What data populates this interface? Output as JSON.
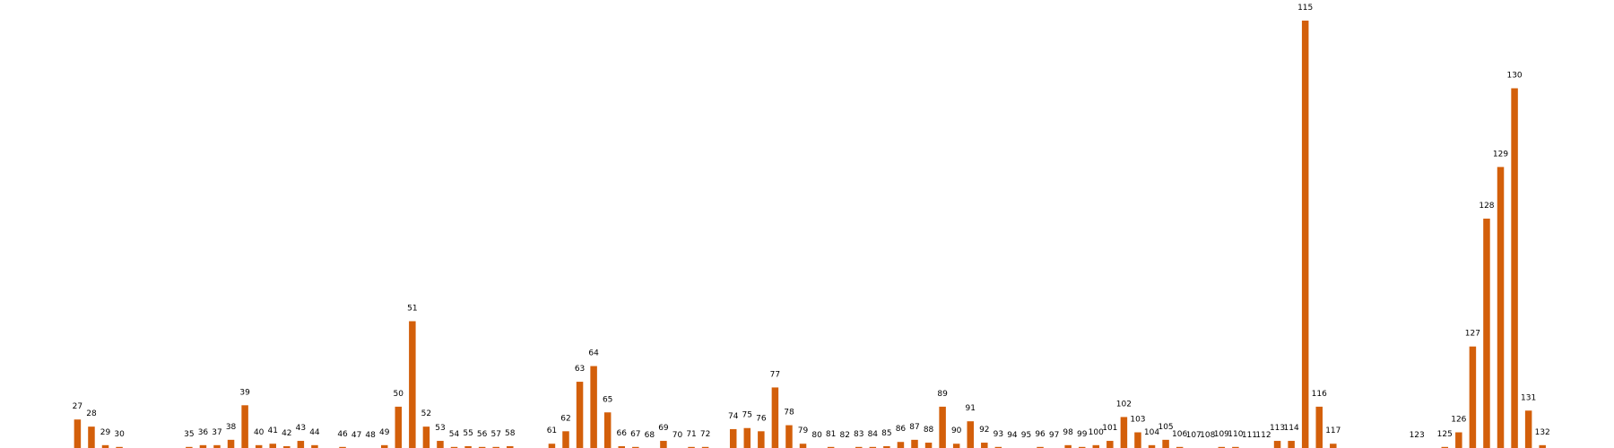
{
  "chart_data": {
    "type": "bar",
    "title": "",
    "xlabel": "",
    "ylabel": "",
    "grid": false,
    "bar_color": "#d35f0a",
    "ylim": [
      0,
      120
    ],
    "bars": [
      {
        "label": "27",
        "value": 8
      },
      {
        "label": "28",
        "value": 6
      },
      {
        "label": "29",
        "value": 0.8
      },
      {
        "label": "30",
        "value": 0.3
      },
      {
        "label": "35",
        "value": 0.3
      },
      {
        "label": "36",
        "value": 0.8
      },
      {
        "label": "37",
        "value": 0.8
      },
      {
        "label": "38",
        "value": 2.3
      },
      {
        "label": "39",
        "value": 12
      },
      {
        "label": "40",
        "value": 0.8
      },
      {
        "label": "41",
        "value": 1.2
      },
      {
        "label": "42",
        "value": 0.5
      },
      {
        "label": "43",
        "value": 2
      },
      {
        "label": "44",
        "value": 0.8
      },
      {
        "label": "46",
        "value": 0.3
      },
      {
        "label": "47",
        "value": 0
      },
      {
        "label": "48",
        "value": 0
      },
      {
        "label": "49",
        "value": 0.8
      },
      {
        "label": "50",
        "value": 11.6
      },
      {
        "label": "51",
        "value": 35.6
      },
      {
        "label": "52",
        "value": 6
      },
      {
        "label": "53",
        "value": 2
      },
      {
        "label": "54",
        "value": 0.3
      },
      {
        "label": "55",
        "value": 0.5
      },
      {
        "label": "56",
        "value": 0.3
      },
      {
        "label": "57",
        "value": 0.3
      },
      {
        "label": "58",
        "value": 0.5
      },
      {
        "label": "61",
        "value": 1.2
      },
      {
        "label": "62",
        "value": 4.7
      },
      {
        "label": "63",
        "value": 18.6
      },
      {
        "label": "64",
        "value": 23
      },
      {
        "label": "65",
        "value": 10
      },
      {
        "label": "66",
        "value": 0.5
      },
      {
        "label": "67",
        "value": 0.3
      },
      {
        "label": "68",
        "value": 0
      },
      {
        "label": "69",
        "value": 2
      },
      {
        "label": "70",
        "value": 0
      },
      {
        "label": "71",
        "value": 0.3
      },
      {
        "label": "72",
        "value": 0.3
      },
      {
        "label": "74",
        "value": 5.3
      },
      {
        "label": "75",
        "value": 5.6
      },
      {
        "label": "76",
        "value": 4.7
      },
      {
        "label": "77",
        "value": 17
      },
      {
        "label": "78",
        "value": 6.4
      },
      {
        "label": "79",
        "value": 1.2
      },
      {
        "label": "80",
        "value": 0
      },
      {
        "label": "81",
        "value": 0.3
      },
      {
        "label": "82",
        "value": 0
      },
      {
        "label": "83",
        "value": 0.3
      },
      {
        "label": "84",
        "value": 0.3
      },
      {
        "label": "85",
        "value": 0.5
      },
      {
        "label": "86",
        "value": 1.7
      },
      {
        "label": "87",
        "value": 2.3
      },
      {
        "label": "88",
        "value": 1.5
      },
      {
        "label": "89",
        "value": 11.6
      },
      {
        "label": "90",
        "value": 1.2
      },
      {
        "label": "91",
        "value": 7.5
      },
      {
        "label": "92",
        "value": 1.5
      },
      {
        "label": "93",
        "value": 0.3
      },
      {
        "label": "94",
        "value": 0
      },
      {
        "label": "95",
        "value": 0
      },
      {
        "label": "96",
        "value": 0.3
      },
      {
        "label": "97",
        "value": 0
      },
      {
        "label": "98",
        "value": 0.8
      },
      {
        "label": "99",
        "value": 0.3
      },
      {
        "label": "100",
        "value": 0.8
      },
      {
        "label": "101",
        "value": 2
      },
      {
        "label": "102",
        "value": 8.7
      },
      {
        "label": "103",
        "value": 4.4
      },
      {
        "label": "104",
        "value": 0.8
      },
      {
        "label": "105",
        "value": 2.3
      },
      {
        "label": "106",
        "value": 0.3
      },
      {
        "label": "107",
        "value": 0
      },
      {
        "label": "108",
        "value": 0
      },
      {
        "label": "109",
        "value": 0.3
      },
      {
        "label": "110",
        "value": 0.3
      },
      {
        "label": "111",
        "value": 0
      },
      {
        "label": "112",
        "value": 0
      },
      {
        "label": "113",
        "value": 2
      },
      {
        "label": "114",
        "value": 2
      },
      {
        "label": "115",
        "value": 120
      },
      {
        "label": "116",
        "value": 11.6
      },
      {
        "label": "117",
        "value": 1.2
      },
      {
        "label": "123",
        "value": 0
      },
      {
        "label": "125",
        "value": 0.3
      },
      {
        "label": "126",
        "value": 4.4
      },
      {
        "label": "127",
        "value": 28.5
      },
      {
        "label": "128",
        "value": 64.4
      },
      {
        "label": "129",
        "value": 78.9
      },
      {
        "label": "130",
        "value": 101
      },
      {
        "label": "131",
        "value": 10.5
      },
      {
        "label": "132",
        "value": 0.8
      }
    ]
  }
}
